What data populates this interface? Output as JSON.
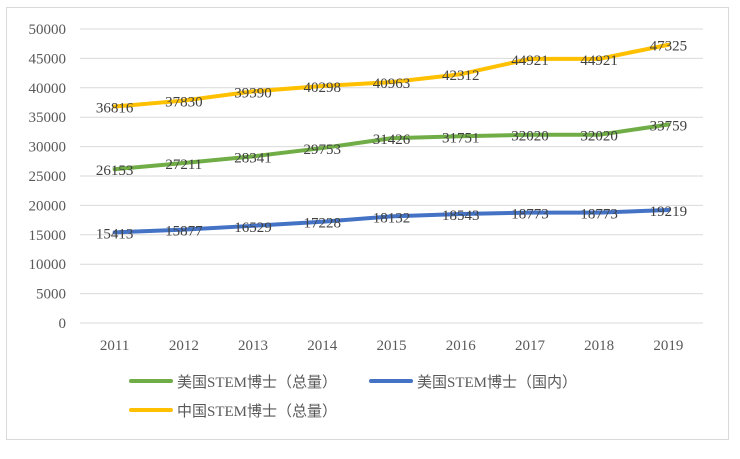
{
  "chart_data": {
    "type": "line",
    "title": "",
    "xlabel": "",
    "ylabel": "",
    "categories": [
      "2011",
      "2012",
      "2013",
      "2014",
      "2015",
      "2016",
      "2017",
      "2018",
      "2019"
    ],
    "ylim": [
      0,
      50000
    ],
    "ytick_step": 5000,
    "grid": true,
    "legend_position": "bottom",
    "series": [
      {
        "name": "美国STEM博士（总量）",
        "color": "#70ad47",
        "values": [
          26153,
          27211,
          28341,
          29753,
          31426,
          31751,
          32020,
          32020,
          33759
        ]
      },
      {
        "name": "美国STEM博士（国内）",
        "color": "#4472c4",
        "values": [
          15413,
          15877,
          16529,
          17228,
          18132,
          18543,
          18773,
          18773,
          19219
        ]
      },
      {
        "name": "中国STEM博士（总量）",
        "color": "#ffc000",
        "values": [
          36816,
          37830,
          39390,
          40298,
          40963,
          42312,
          44921,
          44921,
          47325
        ]
      }
    ]
  }
}
